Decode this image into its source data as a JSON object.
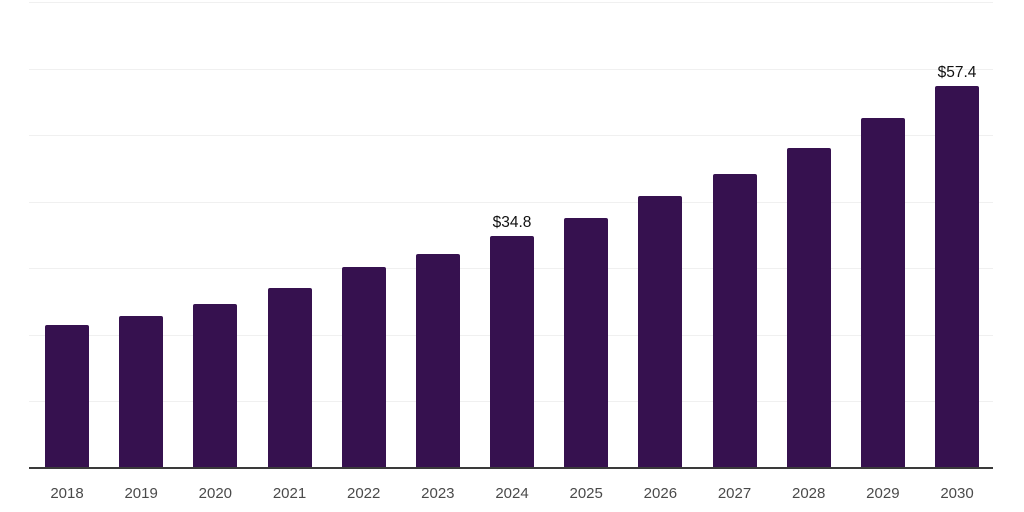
{
  "chart_data": {
    "type": "bar",
    "title": "",
    "xlabel": "",
    "ylabel": "",
    "categories": [
      "2018",
      "2019",
      "2020",
      "2021",
      "2022",
      "2023",
      "2024",
      "2025",
      "2026",
      "2027",
      "2028",
      "2029",
      "2030"
    ],
    "values": [
      21.5,
      22.9,
      24.6,
      27.1,
      30.2,
      32.2,
      34.8,
      37.6,
      40.8,
      44.2,
      48.1,
      52.6,
      57.4
    ],
    "value_labels": [
      {
        "category": "2024",
        "text": "$34.8"
      },
      {
        "category": "2030",
        "text": "$57.4"
      }
    ],
    "ylim": [
      0,
      70
    ],
    "grid_step": 10,
    "grid": true,
    "legend": "none",
    "colors": {
      "bar": "#36114F",
      "gridline": "#f0f0f0",
      "axis": "#3a3a3a",
      "tick_text": "#4a4a4a",
      "label_text": "#111111",
      "background": "#ffffff"
    }
  }
}
